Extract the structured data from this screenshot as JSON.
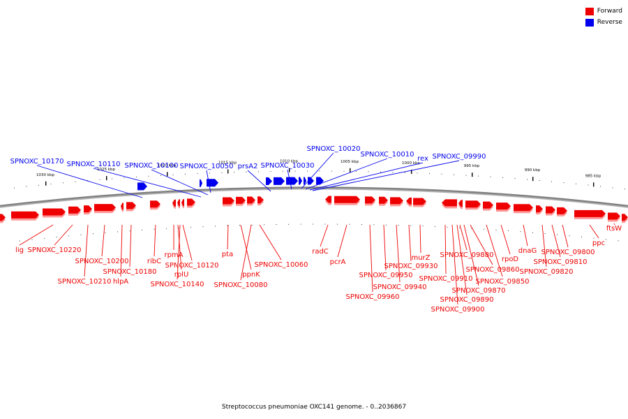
{
  "colors": {
    "forward": "#ee0000",
    "forward_shadow": "#ff9999",
    "reverse": "#0000ee",
    "backbone": "#808080",
    "backbone_shadow": "#b0b0b0",
    "tick": "#000000"
  },
  "legend": [
    {
      "label": "Forward",
      "color": "#ee0000"
    },
    {
      "label": "Reverse",
      "color": "#0000ee"
    }
  ],
  "footer": "Streptococcus pneumoniae OXC141 genome. - 0..2036867",
  "scale_labels": [
    "1030 kbp",
    "1025 kbp",
    "1020 kbp",
    "1015 kbp",
    "1010 kbp",
    "1005 kbp",
    "1000 kbp",
    "995 kbp",
    "990 kbp",
    "985 kbp"
  ],
  "reverse_genes": [
    "SPNOXC_10170",
    "SPNOXC_10110",
    "SPNOXC_10100",
    "SPNOXC_10050",
    "prsA2",
    "SPNOXC_10030",
    "SPNOXC_10020",
    "SPNOXC_10010",
    "rex",
    "SPNOXC_09990"
  ],
  "forward_genes": [
    "lig",
    "SPNOXC_10220",
    "SPNOXC_10210",
    "SPNOXC_10200",
    "hlpA",
    "SPNOXC_10180",
    "ribC",
    "rpmA",
    "rplU",
    "SPNOXC_10120",
    "SPNOXC_10140",
    "pta",
    "ppnK",
    "SPNOXC_10080",
    "SPNOXC_10060",
    "radC",
    "pcrA",
    "SPNOXC_09960",
    "SPNOXC_09950",
    "SPNOXC_09940",
    "SPNOXC_09930",
    "murZ",
    "SPNOXC_09910",
    "SPNOXC_09900",
    "SPNOXC_09890",
    "SPNOXC_09880",
    "SPNOXC_09870",
    "SPNOXC_09860",
    "SPNOXC_09850",
    "rpoD",
    "dnaG",
    "SPNOXC_09820",
    "SPNOXC_09810",
    "SPNOXC_09800",
    "ppc",
    "ftsW"
  ]
}
